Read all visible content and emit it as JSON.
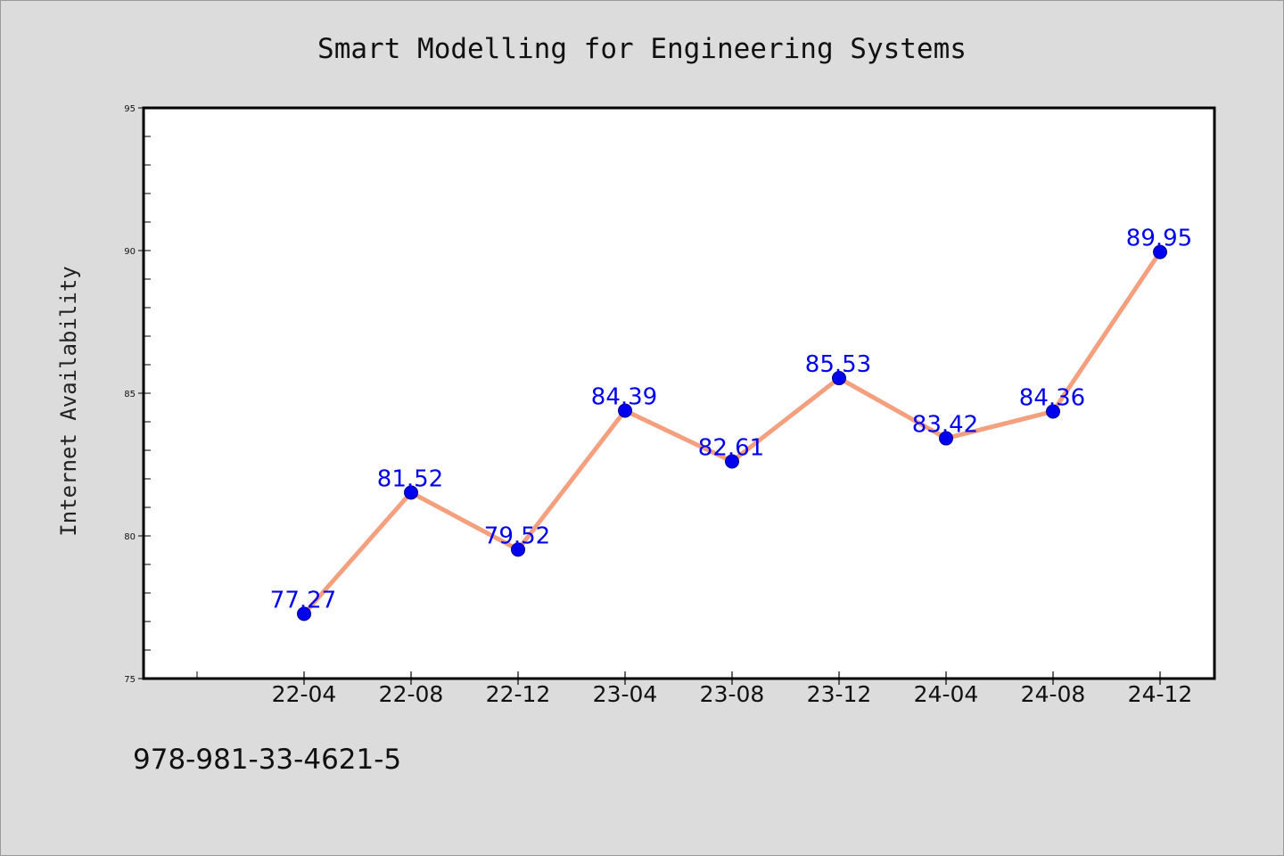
{
  "footer": {
    "code": "978-981-33-4621-5"
  },
  "colors": {
    "background": "#dcdcdc",
    "plot_area": "#ffffff",
    "line": "#f4a07e",
    "marker": "#0000ee",
    "data_label": "#0000ee",
    "frame": "#000000"
  },
  "chart_data": {
    "type": "line",
    "title": "Smart Modelling for Engineering Systems",
    "xlabel": "",
    "ylabel": "Internet Availability",
    "categories": [
      "22-04",
      "22-08",
      "22-12",
      "23-04",
      "23-08",
      "23-12",
      "24-04",
      "24-08",
      "24-12"
    ],
    "series": [
      {
        "values": [
          77.27,
          81.52,
          79.52,
          84.39,
          82.61,
          85.53,
          83.42,
          84.36,
          89.95
        ]
      }
    ],
    "data_labels": [
      "77.27",
      "81.52",
      "79.52",
      "84.39",
      "82.61",
      "85.53",
      "83.42",
      "84.36",
      "89.95"
    ],
    "ylim": [
      75,
      95
    ],
    "yticks": [
      75,
      80,
      85,
      90,
      95
    ],
    "ytick_labels": [
      "75",
      "80",
      "85",
      "90",
      "95"
    ],
    "y_minor_step": 1,
    "grid": false,
    "legend": "none",
    "markers": true
  }
}
